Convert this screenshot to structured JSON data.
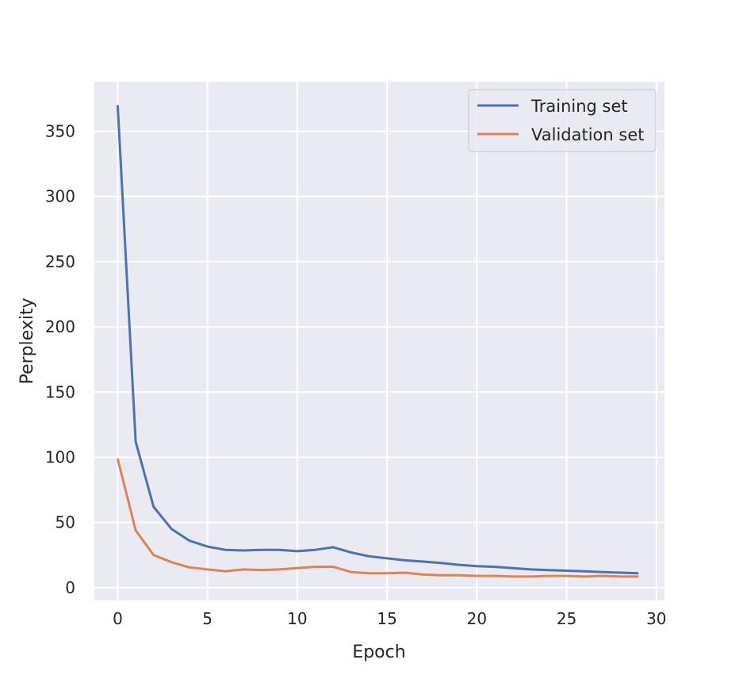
{
  "chart_data": {
    "type": "line",
    "title": "",
    "xlabel": "Epoch",
    "ylabel": "Perplexity",
    "xlim": [
      -1.3,
      30.45
    ],
    "ylim": [
      -9.8,
      388
    ],
    "xticks": [
      0,
      5,
      10,
      15,
      20,
      25,
      30
    ],
    "yticks": [
      0,
      50,
      100,
      150,
      200,
      250,
      300,
      350
    ],
    "grid": true,
    "legend_position": "top-right",
    "x": [
      0,
      1,
      2,
      3,
      4,
      5,
      6,
      7,
      8,
      9,
      10,
      11,
      12,
      13,
      14,
      15,
      16,
      17,
      18,
      19,
      20,
      21,
      22,
      23,
      24,
      25,
      26,
      27,
      28,
      29
    ],
    "series": [
      {
        "name": "Training set",
        "color": "#4c72b0",
        "values": [
          370,
          112,
          62,
          45,
          36,
          31.5,
          29,
          28.5,
          29,
          29,
          28,
          29,
          31,
          27,
          24,
          22.5,
          21,
          20,
          19,
          17.5,
          16.5,
          16,
          15,
          14,
          13.5,
          13,
          12.5,
          12,
          11.5,
          11
        ]
      },
      {
        "name": "Validation set",
        "color": "#dd8452",
        "values": [
          99,
          44,
          25,
          19.5,
          15.5,
          14,
          12.5,
          14,
          13.5,
          14,
          15,
          16,
          16,
          12,
          11,
          11,
          11.5,
          10,
          9.5,
          9.5,
          9,
          9,
          8.5,
          8.5,
          9,
          9,
          8.5,
          9,
          8.5,
          8.5
        ]
      }
    ]
  }
}
